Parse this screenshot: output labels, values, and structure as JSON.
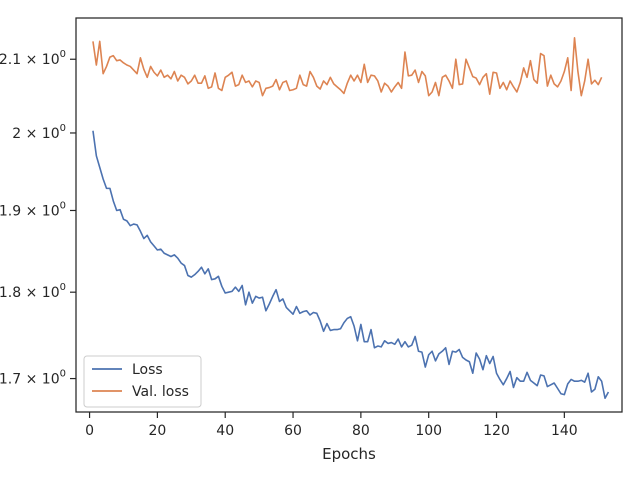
{
  "chart_data": {
    "type": "line",
    "title": "",
    "xlabel": "Epochs",
    "ylabel": "",
    "yscale": "log",
    "xlim": [
      -4,
      157
    ],
    "ylim": [
      1.6628,
      2.1581
    ],
    "grid": false,
    "legend_position": "lower-left",
    "x_ticks": [
      {
        "value": 0,
        "label": "0"
      },
      {
        "value": 20,
        "label": "20"
      },
      {
        "value": 40,
        "label": "40"
      },
      {
        "value": 60,
        "label": "60"
      },
      {
        "value": 80,
        "label": "80"
      },
      {
        "value": 100,
        "label": "100"
      },
      {
        "value": 120,
        "label": "120"
      },
      {
        "value": 140,
        "label": "140"
      }
    ],
    "y_ticks": [
      {
        "value": 1.7,
        "mantissa": "1.7",
        "base": "10",
        "exponent": "0"
      },
      {
        "value": 1.8,
        "mantissa": "1.8",
        "base": "10",
        "exponent": "0"
      },
      {
        "value": 1.9,
        "mantissa": "1.9",
        "base": "10",
        "exponent": "0"
      },
      {
        "value": 2.0,
        "mantissa": "2",
        "base": "10",
        "exponent": "0"
      },
      {
        "value": 2.1,
        "mantissa": "2.1",
        "base": "10",
        "exponent": "0"
      }
    ],
    "x_start": 1,
    "series": [
      {
        "name": "Loss",
        "color": "#4c72b0",
        "values": [
          2.003,
          1.97,
          1.955,
          1.94,
          1.928,
          1.928,
          1.912,
          1.9,
          1.901,
          1.889,
          1.887,
          1.881,
          1.883,
          1.882,
          1.874,
          1.865,
          1.869,
          1.861,
          1.856,
          1.851,
          1.852,
          1.847,
          1.845,
          1.843,
          1.845,
          1.841,
          1.835,
          1.832,
          1.82,
          1.818,
          1.821,
          1.825,
          1.83,
          1.822,
          1.828,
          1.815,
          1.816,
          1.819,
          1.807,
          1.799,
          1.8,
          1.801,
          1.806,
          1.801,
          1.808,
          1.785,
          1.8,
          1.787,
          1.795,
          1.793,
          1.794,
          1.778,
          1.786,
          1.795,
          1.803,
          1.789,
          1.792,
          1.782,
          1.778,
          1.774,
          1.783,
          1.775,
          1.777,
          1.778,
          1.773,
          1.776,
          1.775,
          1.766,
          1.754,
          1.763,
          1.755,
          1.756,
          1.756,
          1.757,
          1.764,
          1.769,
          1.771,
          1.76,
          1.743,
          1.762,
          1.742,
          1.742,
          1.756,
          1.735,
          1.737,
          1.736,
          1.743,
          1.74,
          1.741,
          1.739,
          1.745,
          1.736,
          1.742,
          1.736,
          1.738,
          1.748,
          1.731,
          1.73,
          1.713,
          1.727,
          1.731,
          1.72,
          1.728,
          1.731,
          1.735,
          1.716,
          1.731,
          1.73,
          1.733,
          1.724,
          1.721,
          1.719,
          1.706,
          1.729,
          1.722,
          1.71,
          1.726,
          1.717,
          1.725,
          1.706,
          1.699,
          1.693,
          1.7,
          1.708,
          1.69,
          1.701,
          1.697,
          1.697,
          1.707,
          1.698,
          1.695,
          1.692,
          1.704,
          1.703,
          1.691,
          1.693,
          1.695,
          1.689,
          1.683,
          1.682,
          1.694,
          1.699,
          1.697,
          1.697,
          1.698,
          1.696,
          1.706,
          1.685,
          1.688,
          1.702,
          1.697,
          1.678,
          1.685
        ]
      },
      {
        "name": "Val. loss",
        "color": "#dd8452",
        "values": [
          2.125,
          2.092,
          2.125,
          2.08,
          2.09,
          2.103,
          2.105,
          2.098,
          2.099,
          2.095,
          2.092,
          2.09,
          2.085,
          2.08,
          2.102,
          2.086,
          2.075,
          2.09,
          2.082,
          2.077,
          2.085,
          2.075,
          2.078,
          2.073,
          2.083,
          2.07,
          2.078,
          2.075,
          2.066,
          2.07,
          2.078,
          2.067,
          2.067,
          2.077,
          2.06,
          2.062,
          2.081,
          2.06,
          2.057,
          2.075,
          2.078,
          2.082,
          2.063,
          2.065,
          2.078,
          2.068,
          2.07,
          2.062,
          2.07,
          2.068,
          2.05,
          2.06,
          2.061,
          2.063,
          2.072,
          2.058,
          2.068,
          2.07,
          2.057,
          2.058,
          2.06,
          2.078,
          2.065,
          2.063,
          2.083,
          2.075,
          2.063,
          2.059,
          2.07,
          2.065,
          2.075,
          2.066,
          2.062,
          2.058,
          2.053,
          2.067,
          2.078,
          2.07,
          2.078,
          2.068,
          2.093,
          2.068,
          2.078,
          2.077,
          2.07,
          2.055,
          2.067,
          2.063,
          2.055,
          2.062,
          2.068,
          2.06,
          2.11,
          2.077,
          2.078,
          2.085,
          2.068,
          2.083,
          2.077,
          2.05,
          2.055,
          2.068,
          2.05,
          2.075,
          2.078,
          2.07,
          2.06,
          2.1,
          2.065,
          2.066,
          2.1,
          2.088,
          2.076,
          2.074,
          2.065,
          2.075,
          2.08,
          2.052,
          2.082,
          2.081,
          2.06,
          2.068,
          2.058,
          2.07,
          2.062,
          2.055,
          2.068,
          2.088,
          2.075,
          2.098,
          2.072,
          2.067,
          2.108,
          2.105,
          2.063,
          2.078,
          2.066,
          2.062,
          2.07,
          2.083,
          2.102,
          2.057,
          2.13,
          2.083,
          2.05,
          2.07,
          2.1,
          2.066,
          2.071,
          2.065,
          2.075
        ]
      }
    ]
  }
}
